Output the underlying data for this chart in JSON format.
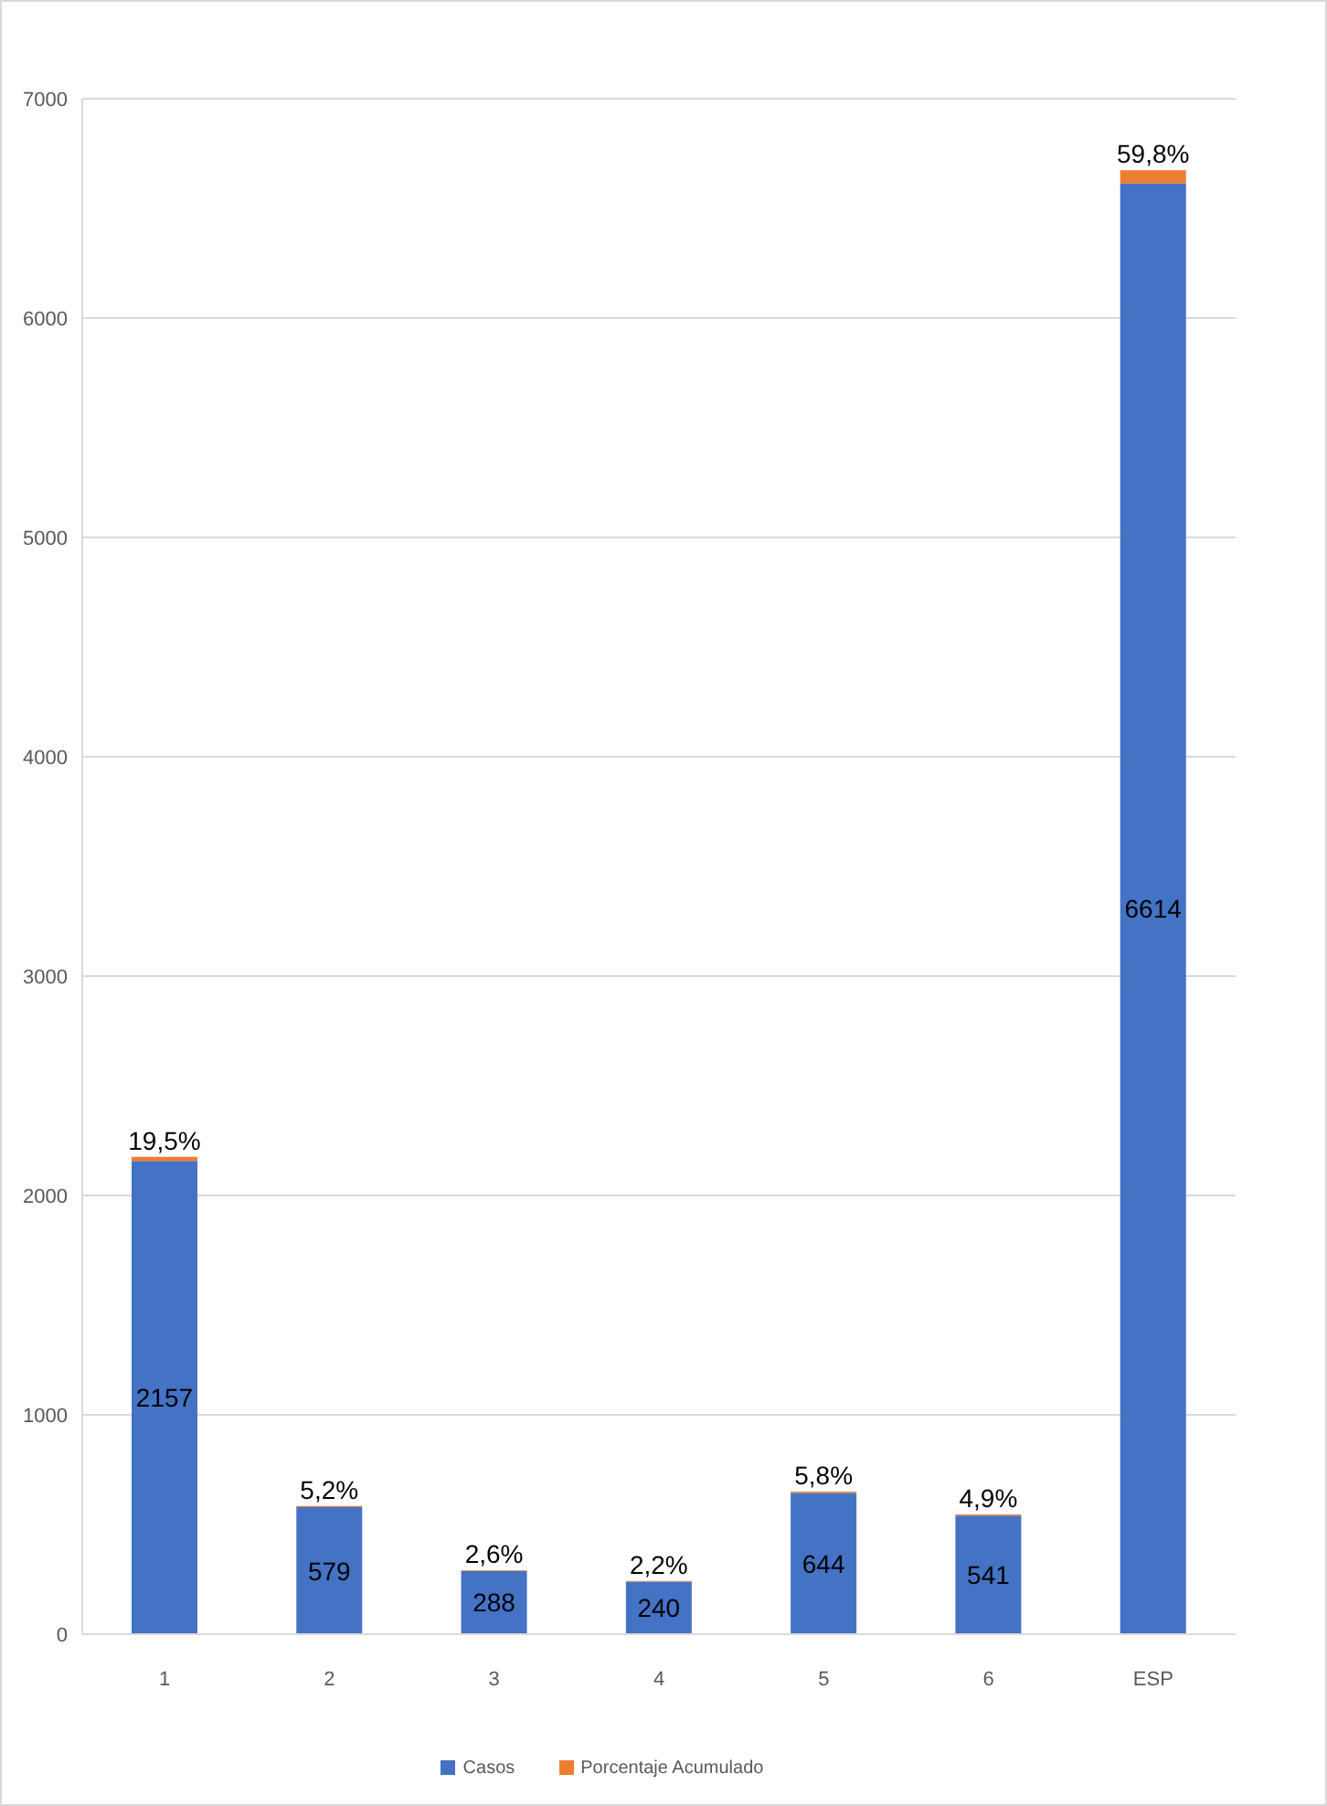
{
  "chart_data": {
    "type": "bar",
    "categories": [
      "1",
      "2",
      "3",
      "4",
      "5",
      "6",
      "ESP"
    ],
    "series": [
      {
        "name": "Casos",
        "color": "#4472c4",
        "values": [
          2157,
          579,
          288,
          240,
          644,
          541,
          6614
        ],
        "value_labels": [
          "2157",
          "579",
          "288",
          "240",
          "644",
          "541",
          "6614"
        ]
      },
      {
        "name": "Porcentaje Acumulado",
        "color": "#ed7d31",
        "values": [
          19.5,
          5.2,
          2.6,
          2.2,
          5.8,
          4.9,
          59.8
        ],
        "value_labels": [
          "19,5%",
          "5,2%",
          "2,6%",
          "2,2%",
          "5,8%",
          "4,9%",
          "59,8%"
        ]
      }
    ],
    "stacked": true,
    "ylim": [
      0,
      7000
    ],
    "yticks": [
      0,
      1000,
      2000,
      3000,
      4000,
      5000,
      6000,
      7000
    ],
    "grid": "y",
    "legend": "bottom"
  }
}
